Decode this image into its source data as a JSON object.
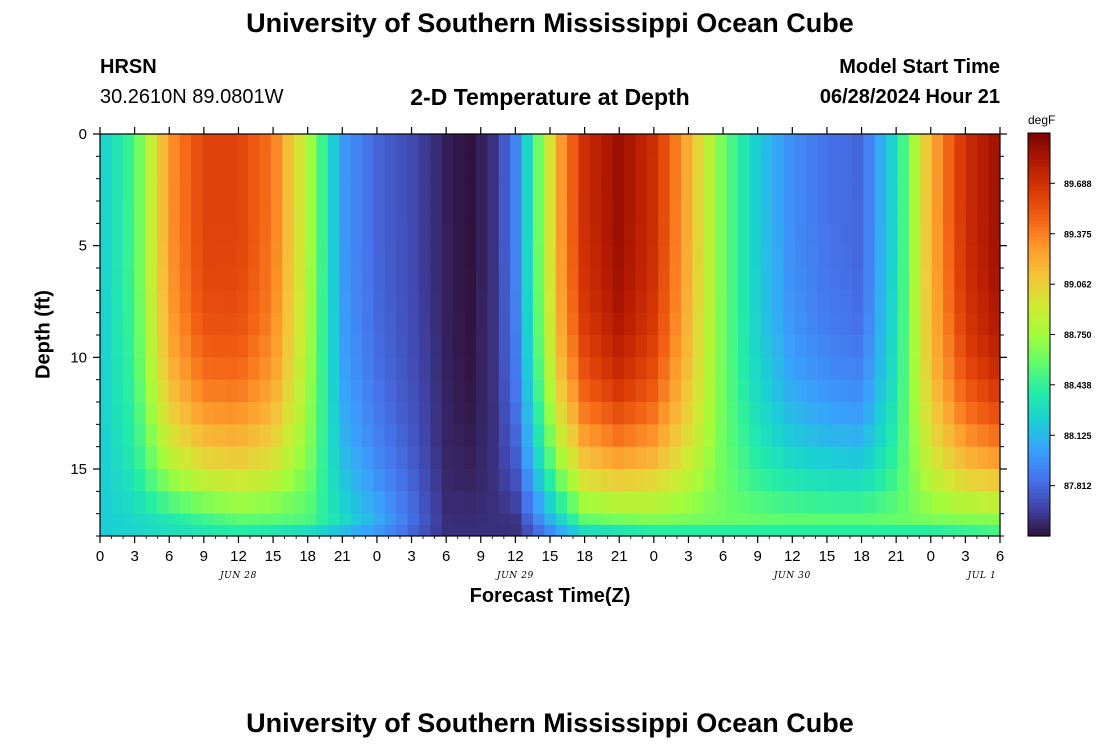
{
  "header": {
    "title": "University of Southern Mississippi Ocean Cube",
    "station": "HRSN",
    "coords": "30.2610N  89.0801W",
    "subtitle": "2-D Temperature at Depth",
    "model_label": "Model Start Time",
    "model_time": "06/28/2024 Hour 21"
  },
  "footer": {
    "title": "University of Southern Mississippi Ocean Cube"
  },
  "colorbar": {
    "unit": "degF",
    "ticks": [
      "89.688",
      "89.375",
      "89.062",
      "88.750",
      "88.438",
      "88.125",
      "87.812"
    ],
    "tick_values": [
      89.688,
      89.375,
      89.062,
      88.75,
      88.438,
      88.125,
      87.812
    ],
    "range": [
      87.5,
      90.0
    ],
    "colors": [
      "#30123b",
      "#4145ab",
      "#4675ed",
      "#39a2fc",
      "#1bcfd4",
      "#24eca6",
      "#61fc6c",
      "#a4fc3b",
      "#d1e834",
      "#f3c63a",
      "#fe9b2d",
      "#f36315",
      "#d93806",
      "#b11901",
      "#7a0402"
    ]
  },
  "chart_data": {
    "type": "heatmap",
    "title": "2-D Temperature at Depth",
    "xlabel": "Forecast Time(Z)",
    "ylabel": "Depth (ft)",
    "x_tick_labels": [
      "0",
      "3",
      "6",
      "9",
      "12",
      "15",
      "18",
      "21",
      "0",
      "3",
      "6",
      "9",
      "12",
      "15",
      "18",
      "21",
      "0",
      "3",
      "6",
      "9",
      "12",
      "15",
      "18",
      "21",
      "0",
      "3",
      "6"
    ],
    "day_labels": [
      "JUN 28",
      "JUN 29",
      "JUN 30",
      "JUL 1"
    ],
    "x_range_hours": [
      0,
      78
    ],
    "y_ticks": [
      0,
      5,
      10,
      15
    ],
    "y_range_ft": [
      0,
      18
    ],
    "z_unit": "degF",
    "z_range": [
      87.5,
      90.0
    ],
    "surface_profile": [
      [
        0,
        88.2
      ],
      [
        3,
        88.5
      ],
      [
        6,
        89.3
      ],
      [
        9,
        89.6
      ],
      [
        12,
        89.6
      ],
      [
        15,
        89.4
      ],
      [
        18,
        88.8
      ],
      [
        21,
        88.0
      ],
      [
        24,
        87.8
      ],
      [
        27,
        87.7
      ],
      [
        30,
        87.55
      ],
      [
        32,
        87.5
      ],
      [
        34,
        87.6
      ],
      [
        36,
        87.9
      ],
      [
        38,
        88.6
      ],
      [
        40,
        89.3
      ],
      [
        42,
        89.7
      ],
      [
        45,
        89.9
      ],
      [
        48,
        89.7
      ],
      [
        51,
        89.2
      ],
      [
        54,
        88.6
      ],
      [
        57,
        88.2
      ],
      [
        60,
        87.95
      ],
      [
        63,
        87.85
      ],
      [
        66,
        87.8
      ],
      [
        69,
        88.3
      ],
      [
        72,
        89.2
      ],
      [
        75,
        89.7
      ],
      [
        78,
        89.9
      ]
    ],
    "bottom_profile": [
      [
        0,
        88.2
      ],
      [
        6,
        88.3
      ],
      [
        12,
        88.5
      ],
      [
        18,
        88.5
      ],
      [
        24,
        88.1
      ],
      [
        30,
        87.6
      ],
      [
        36,
        87.6
      ],
      [
        42,
        88.5
      ],
      [
        48,
        88.6
      ],
      [
        54,
        88.6
      ],
      [
        60,
        88.6
      ],
      [
        66,
        88.6
      ],
      [
        72,
        88.6
      ],
      [
        78,
        88.6
      ]
    ],
    "bottom_layer_values": [
      [
        0,
        88.2
      ],
      [
        6,
        88.3
      ],
      [
        12,
        88.4
      ],
      [
        18,
        88.3
      ],
      [
        24,
        88.0
      ],
      [
        30,
        87.6
      ],
      [
        36,
        87.6
      ],
      [
        42,
        88.3
      ],
      [
        48,
        88.4
      ],
      [
        54,
        88.4
      ],
      [
        60,
        88.4
      ],
      [
        66,
        88.4
      ],
      [
        72,
        88.4
      ],
      [
        78,
        88.5
      ]
    ]
  }
}
